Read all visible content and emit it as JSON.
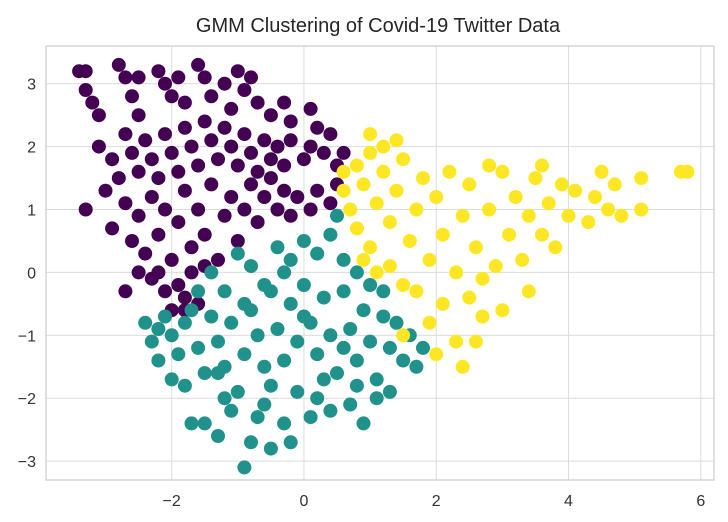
{
  "chart_data": {
    "type": "scatter",
    "title": "GMM Clustering of Covid-19 Twitter Data",
    "xlabel": "",
    "ylabel": "",
    "xlim": [
      -3.9,
      6.2
    ],
    "ylim": [
      -3.3,
      3.6
    ],
    "xticks": [
      -2,
      0,
      2,
      4,
      6
    ],
    "yticks": [
      -3,
      -2,
      -1,
      0,
      1,
      2,
      3
    ],
    "xtick_labels": [
      "−2",
      "0",
      "2",
      "4",
      "6"
    ],
    "ytick_labels": [
      "−3",
      "−2",
      "−1",
      "0",
      "1",
      "2",
      "3"
    ],
    "grid": true,
    "legend": "none",
    "series": [
      {
        "color": "#440154",
        "points": [
          [
            -3.4,
            3.2
          ],
          [
            -3.3,
            3.2
          ],
          [
            -3.3,
            2.9
          ],
          [
            -3.2,
            2.7
          ],
          [
            -3.1,
            2.5
          ],
          [
            -2.8,
            3.3
          ],
          [
            -2.7,
            3.1
          ],
          [
            -2.5,
            3.1
          ],
          [
            -2.6,
            2.8
          ],
          [
            -2.5,
            2.5
          ],
          [
            -2.2,
            3.2
          ],
          [
            -2.1,
            3.0
          ],
          [
            -2.0,
            2.8
          ],
          [
            -1.9,
            3.1
          ],
          [
            -1.8,
            2.7
          ],
          [
            -1.6,
            3.3
          ],
          [
            -1.5,
            3.1
          ],
          [
            -1.4,
            2.8
          ],
          [
            -1.2,
            3.0
          ],
          [
            -1.1,
            2.6
          ],
          [
            -1.0,
            3.2
          ],
          [
            -0.9,
            2.9
          ],
          [
            -0.8,
            3.1
          ],
          [
            -0.7,
            2.7
          ],
          [
            -0.5,
            2.5
          ],
          [
            -0.3,
            2.7
          ],
          [
            -0.2,
            2.4
          ],
          [
            0.1,
            2.6
          ],
          [
            0.2,
            2.3
          ],
          [
            -3.1,
            2.0
          ],
          [
            -2.9,
            1.8
          ],
          [
            -2.8,
            1.5
          ],
          [
            -2.7,
            2.2
          ],
          [
            -2.6,
            1.9
          ],
          [
            -2.5,
            1.6
          ],
          [
            -2.4,
            2.1
          ],
          [
            -2.3,
            1.8
          ],
          [
            -2.2,
            1.5
          ],
          [
            -2.1,
            2.2
          ],
          [
            -2.0,
            1.9
          ],
          [
            -1.9,
            1.6
          ],
          [
            -1.8,
            2.3
          ],
          [
            -1.7,
            2.0
          ],
          [
            -1.6,
            1.7
          ],
          [
            -1.5,
            2.4
          ],
          [
            -1.4,
            2.1
          ],
          [
            -1.3,
            1.8
          ],
          [
            -1.2,
            2.3
          ],
          [
            -1.1,
            2.0
          ],
          [
            -1.0,
            1.7
          ],
          [
            -0.9,
            2.2
          ],
          [
            -0.8,
            1.9
          ],
          [
            -0.7,
            1.6
          ],
          [
            -0.6,
            2.1
          ],
          [
            -0.5,
            1.8
          ],
          [
            -0.4,
            2.0
          ],
          [
            -0.3,
            1.7
          ],
          [
            -0.2,
            2.1
          ],
          [
            0.0,
            1.8
          ],
          [
            0.1,
            2.0
          ],
          [
            0.3,
            1.9
          ],
          [
            0.4,
            2.2
          ],
          [
            0.5,
            1.7
          ],
          [
            -3.3,
            1.0
          ],
          [
            -3.0,
            1.3
          ],
          [
            -2.9,
            0.7
          ],
          [
            -2.7,
            1.1
          ],
          [
            -2.6,
            0.5
          ],
          [
            -2.5,
            0.9
          ],
          [
            -2.4,
            0.3
          ],
          [
            -2.3,
            1.2
          ],
          [
            -2.2,
            0.6
          ],
          [
            -2.1,
            1.0
          ],
          [
            -2.0,
            0.2
          ],
          [
            -1.9,
            0.8
          ],
          [
            -1.8,
            1.3
          ],
          [
            -1.7,
            0.4
          ],
          [
            -1.6,
            1.0
          ],
          [
            -1.5,
            0.6
          ],
          [
            -1.4,
            1.4
          ],
          [
            -1.3,
            0.2
          ],
          [
            -1.2,
            0.9
          ],
          [
            -1.1,
            1.2
          ],
          [
            -1.0,
            0.5
          ],
          [
            -0.9,
            1.0
          ],
          [
            -0.8,
            1.4
          ],
          [
            -0.7,
            0.8
          ],
          [
            -0.6,
            1.2
          ],
          [
            -0.5,
            1.5
          ],
          [
            -0.4,
            1.0
          ],
          [
            -0.3,
            1.3
          ],
          [
            -0.2,
            0.9
          ],
          [
            -0.1,
            1.2
          ],
          [
            0.1,
            1.0
          ],
          [
            0.2,
            1.3
          ],
          [
            0.4,
            1.1
          ],
          [
            0.5,
            1.4
          ],
          [
            -2.1,
            -0.3
          ],
          [
            -2.0,
            -0.6
          ],
          [
            -1.9,
            -0.2
          ],
          [
            -1.8,
            -0.4
          ],
          [
            -2.3,
            -0.1
          ],
          [
            -2.7,
            -0.3
          ],
          [
            -1.7,
            0.0
          ],
          [
            -1.6,
            -0.5
          ],
          [
            -1.8,
            -0.6
          ],
          [
            -2.2,
            0.0
          ],
          [
            -1.5,
            0.1
          ],
          [
            -2.5,
            0.0
          ],
          [
            0.6,
            1.9
          ]
        ]
      },
      {
        "color": "#21918c",
        "points": [
          [
            -2.4,
            -0.8
          ],
          [
            -2.3,
            -1.1
          ],
          [
            -2.2,
            -1.4
          ],
          [
            -2.1,
            -0.7
          ],
          [
            -2.0,
            -1.0
          ],
          [
            -1.9,
            -1.3
          ],
          [
            -1.8,
            -1.8
          ],
          [
            -1.7,
            -0.6
          ],
          [
            -1.6,
            -1.2
          ],
          [
            -1.5,
            -1.6
          ],
          [
            -1.4,
            -0.7
          ],
          [
            -1.3,
            -1.1
          ],
          [
            -1.2,
            -1.5
          ],
          [
            -1.1,
            -0.8
          ],
          [
            -1.0,
            -1.9
          ],
          [
            -0.9,
            -1.3
          ],
          [
            -0.8,
            -0.6
          ],
          [
            -0.7,
            -1.0
          ],
          [
            -0.6,
            -1.5
          ],
          [
            -0.5,
            -0.3
          ],
          [
            -0.4,
            -0.9
          ],
          [
            -0.3,
            -1.4
          ],
          [
            -0.2,
            -0.5
          ],
          [
            -0.1,
            -1.1
          ],
          [
            0.0,
            -0.2
          ],
          [
            0.1,
            -0.8
          ],
          [
            0.2,
            -1.3
          ],
          [
            0.3,
            -0.4
          ],
          [
            0.4,
            -1.0
          ],
          [
            0.5,
            -1.6
          ],
          [
            0.6,
            -0.3
          ],
          [
            0.7,
            -0.9
          ],
          [
            0.8,
            -1.4
          ],
          [
            0.9,
            -0.6
          ],
          [
            1.0,
            -1.1
          ],
          [
            1.1,
            -1.7
          ],
          [
            1.2,
            -0.7
          ],
          [
            1.3,
            -1.2
          ],
          [
            1.4,
            -0.8
          ],
          [
            1.5,
            -1.4
          ],
          [
            1.6,
            -1.0
          ],
          [
            1.7,
            -1.5
          ],
          [
            1.8,
            -1.2
          ],
          [
            -1.5,
            -2.4
          ],
          [
            -1.7,
            -2.4
          ],
          [
            -1.3,
            -2.6
          ],
          [
            -1.1,
            -2.2
          ],
          [
            -0.9,
            -3.1
          ],
          [
            -0.8,
            -2.7
          ],
          [
            -0.5,
            -2.8
          ],
          [
            -0.3,
            -2.4
          ],
          [
            -0.2,
            -2.7
          ],
          [
            -0.7,
            -2.3
          ],
          [
            0.1,
            -2.3
          ],
          [
            0.4,
            -2.2
          ],
          [
            0.7,
            -2.1
          ],
          [
            0.9,
            -2.4
          ],
          [
            1.1,
            -2.0
          ],
          [
            1.3,
            -1.9
          ],
          [
            -1.2,
            -2.0
          ],
          [
            -0.6,
            -2.1
          ],
          [
            0.2,
            -2.0
          ],
          [
            -1.4,
            0.0
          ],
          [
            -1.2,
            -0.3
          ],
          [
            -1.0,
            0.3
          ],
          [
            -0.8,
            0.1
          ],
          [
            -0.6,
            -0.2
          ],
          [
            -0.4,
            0.4
          ],
          [
            -0.2,
            0.2
          ],
          [
            0.0,
            0.5
          ],
          [
            0.2,
            0.3
          ],
          [
            0.4,
            0.6
          ],
          [
            0.5,
            0.9
          ],
          [
            0.6,
            0.2
          ],
          [
            0.8,
            0.0
          ],
          [
            1.0,
            -0.2
          ],
          [
            -1.8,
            -0.8
          ],
          [
            -1.6,
            -0.3
          ],
          [
            -2.0,
            -1.7
          ],
          [
            -2.2,
            -0.9
          ],
          [
            -0.5,
            -1.8
          ],
          [
            0.3,
            -1.7
          ],
          [
            -1.3,
            -1.6
          ],
          [
            -0.1,
            -1.9
          ],
          [
            0.6,
            -1.2
          ],
          [
            -0.9,
            -0.5
          ],
          [
            0.0,
            -0.7
          ],
          [
            -0.3,
            0.0
          ],
          [
            1.2,
            -0.3
          ],
          [
            0.8,
            -1.8
          ]
        ]
      },
      {
        "color": "#fde725",
        "points": [
          [
            0.6,
            1.3
          ],
          [
            0.6,
            1.6
          ],
          [
            0.7,
            1.0
          ],
          [
            0.8,
            1.7
          ],
          [
            0.8,
            0.7
          ],
          [
            0.9,
            1.4
          ],
          [
            1.0,
            1.9
          ],
          [
            1.0,
            0.4
          ],
          [
            1.1,
            1.1
          ],
          [
            1.2,
            1.6
          ],
          [
            1.3,
            0.8
          ],
          [
            1.3,
            0.1
          ],
          [
            1.4,
            1.3
          ],
          [
            1.5,
            1.8
          ],
          [
            1.6,
            0.5
          ],
          [
            1.7,
            1.0
          ],
          [
            1.7,
            -0.3
          ],
          [
            1.8,
            1.5
          ],
          [
            1.9,
            0.2
          ],
          [
            1.9,
            -0.8
          ],
          [
            2.0,
            1.2
          ],
          [
            2.1,
            0.6
          ],
          [
            2.1,
            -0.5
          ],
          [
            2.2,
            1.6
          ],
          [
            2.3,
            0.0
          ],
          [
            2.3,
            -1.1
          ],
          [
            2.4,
            0.9
          ],
          [
            2.5,
            1.4
          ],
          [
            2.5,
            -0.4
          ],
          [
            2.6,
            0.4
          ],
          [
            2.7,
            -0.7
          ],
          [
            2.8,
            1.0
          ],
          [
            2.9,
            0.1
          ],
          [
            3.0,
            1.6
          ],
          [
            3.0,
            -0.6
          ],
          [
            3.1,
            0.6
          ],
          [
            3.2,
            1.2
          ],
          [
            3.3,
            0.2
          ],
          [
            3.4,
            0.9
          ],
          [
            3.5,
            1.5
          ],
          [
            3.6,
            0.6
          ],
          [
            3.7,
            1.1
          ],
          [
            3.8,
            0.4
          ],
          [
            3.9,
            1.4
          ],
          [
            4.0,
            0.9
          ],
          [
            4.1,
            1.3
          ],
          [
            4.3,
            0.8
          ],
          [
            4.4,
            1.2
          ],
          [
            4.6,
            1.0
          ],
          [
            4.7,
            1.4
          ],
          [
            4.8,
            0.9
          ],
          [
            5.1,
            1.0
          ],
          [
            5.1,
            1.5
          ],
          [
            5.7,
            1.6
          ],
          [
            5.8,
            1.6
          ],
          [
            1.5,
            -1.0
          ],
          [
            2.0,
            -1.3
          ],
          [
            2.4,
            -1.5
          ],
          [
            2.6,
            -1.1
          ],
          [
            1.0,
            2.2
          ],
          [
            1.2,
            2.0
          ],
          [
            1.4,
            2.1
          ],
          [
            2.8,
            1.7
          ],
          [
            3.6,
            1.7
          ],
          [
            4.5,
            1.6
          ],
          [
            0.9,
            0.2
          ],
          [
            1.1,
            0.0
          ],
          [
            1.5,
            -0.2
          ],
          [
            2.7,
            -0.1
          ],
          [
            3.4,
            -0.3
          ]
        ]
      }
    ]
  }
}
